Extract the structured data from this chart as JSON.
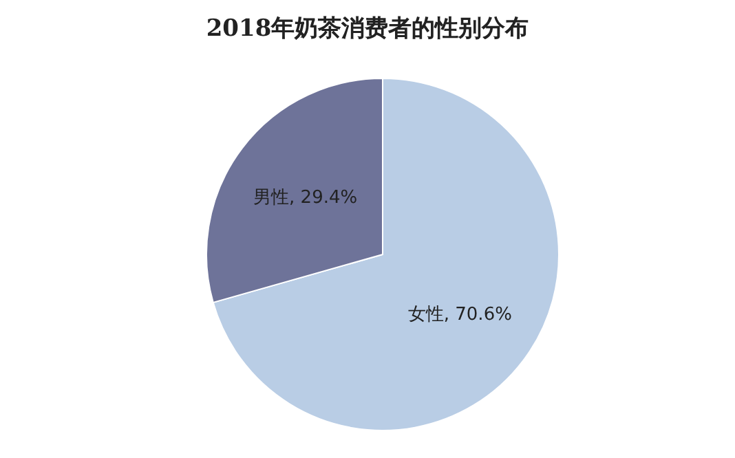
{
  "chart_data": {
    "type": "pie",
    "title": "2018年奶茶消费者的性别分布",
    "categories": [
      "女性",
      "男性"
    ],
    "values": [
      70.6,
      29.4
    ],
    "value_labels": [
      ", 70.6%",
      ", 29.4%"
    ],
    "colors": [
      "#b9cde5",
      "#6e7399"
    ]
  }
}
